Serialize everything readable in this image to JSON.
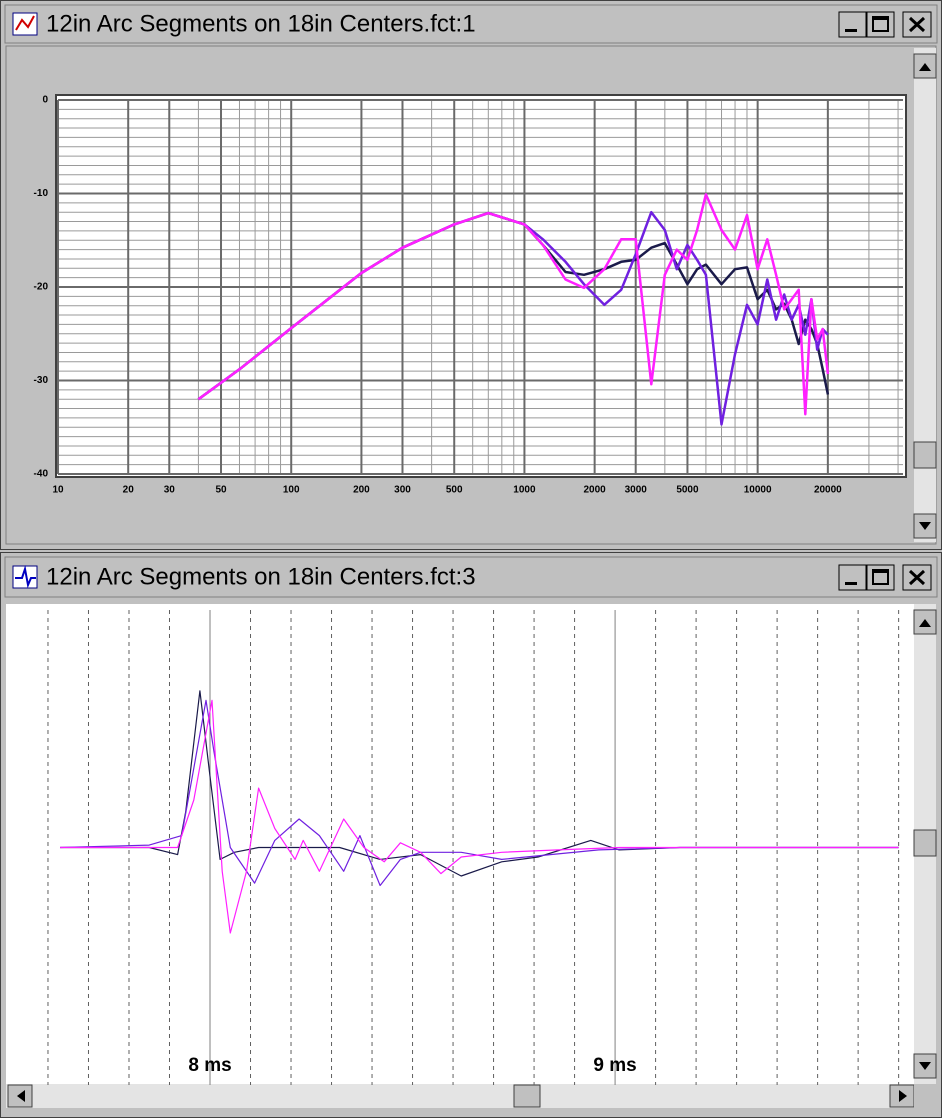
{
  "windows": [
    {
      "title": "12in Arc Segments on 18in Centers.fct:1"
    },
    {
      "title": "12in Arc Segments on 18in Centers.fct:3"
    }
  ],
  "chart_data": [
    {
      "type": "line",
      "x_scale": "log",
      "x": [
        40,
        60,
        100,
        200,
        300,
        500,
        700,
        1000,
        1200,
        1500,
        1800,
        2200,
        2600,
        3000,
        3500,
        4000,
        4500,
        5000,
        5500,
        6000,
        7000,
        8000,
        9000,
        10000,
        11000,
        12000,
        13000,
        14000,
        15000,
        16000,
        17000,
        18000,
        19000,
        20000
      ],
      "series": [
        {
          "color": "#1a1a4a",
          "values": [
            -32,
            -28.8,
            -24.4,
            -18.5,
            -15.8,
            -13.3,
            -12.1,
            -13.3,
            -15.5,
            -18.4,
            -18.7,
            -18.1,
            -17.3,
            -17.1,
            -15.8,
            -15.3,
            -17.6,
            -19.7,
            -18.1,
            -17.6,
            -19.7,
            -18.1,
            -17.9,
            -21.3,
            -20.3,
            -22.4,
            -21.8,
            -23.5,
            -26.1,
            -23.5,
            -24.5,
            -26.1,
            -28.8,
            -31.5
          ]
        },
        {
          "color": "#7020e0",
          "values": [
            -32,
            -28.8,
            -24.4,
            -18.5,
            -15.8,
            -13.3,
            -12.1,
            -13.3,
            -14.9,
            -17.3,
            -19.7,
            -21.9,
            -20.3,
            -16.5,
            -12.0,
            -13.9,
            -18.1,
            -15.5,
            -17.1,
            -18.7,
            -34.7,
            -27.2,
            -21.9,
            -24.0,
            -19.2,
            -23.5,
            -20.8,
            -23.5,
            -21.9,
            -25.1,
            -21.3,
            -26.7,
            -24.5,
            -25.1
          ]
        },
        {
          "color": "#ff20ff",
          "values": [
            -32,
            -28.8,
            -24.4,
            -18.5,
            -15.8,
            -13.3,
            -12.1,
            -13.3,
            -15.5,
            -19.2,
            -20.1,
            -18.1,
            -14.9,
            -14.9,
            -30.4,
            -18.7,
            -16.0,
            -17.1,
            -13.9,
            -10.1,
            -13.9,
            -16.0,
            -12.3,
            -18.1,
            -14.9,
            -18.7,
            -22.4,
            -21.3,
            -20.3,
            -33.6,
            -21.3,
            -25.6,
            -24.5,
            -29.3
          ]
        }
      ],
      "xlim": [
        10,
        42000
      ],
      "ylim": [
        -40,
        0
      ],
      "xticks": [
        10,
        20,
        30,
        50,
        100,
        200,
        300,
        500,
        1000,
        2000,
        3000,
        5000,
        10000,
        20000
      ],
      "yticks": [
        0,
        -10,
        -20,
        -30,
        -40
      ],
      "grid": true
    },
    {
      "type": "line",
      "series": [
        {
          "color": "#1a1a4a",
          "x": [
            7.63,
            7.85,
            7.92,
            7.94,
            7.975,
            8.0,
            8.025,
            8.06,
            8.12,
            8.22,
            8.32,
            8.42,
            8.52,
            8.62,
            8.72,
            8.81,
            8.94,
            9.01,
            9.16,
            9.7
          ],
          "values": [
            0,
            0,
            -0.03,
            0.15,
            0.66,
            0.3,
            -0.05,
            -0.02,
            0,
            0,
            0,
            -0.05,
            -0.03,
            -0.12,
            -0.06,
            -0.04,
            0.03,
            -0.01,
            0,
            0
          ]
        },
        {
          "color": "#7020e0",
          "x": [
            7.63,
            7.85,
            7.93,
            7.99,
            8.01,
            8.05,
            8.11,
            8.16,
            8.22,
            8.27,
            8.33,
            8.37,
            8.42,
            8.47,
            8.52,
            8.62,
            8.72,
            8.84,
            8.96,
            9.16,
            9.7
          ],
          "values": [
            0,
            0.01,
            0.05,
            0.62,
            0.4,
            0,
            -0.15,
            0.03,
            0.12,
            0.05,
            -0.1,
            0.05,
            -0.16,
            -0.05,
            -0.02,
            -0.02,
            -0.05,
            -0.03,
            -0.01,
            0,
            0
          ]
        },
        {
          "color": "#ff20ff",
          "x": [
            7.63,
            7.92,
            7.96,
            8.005,
            8.03,
            8.05,
            8.09,
            8.12,
            8.16,
            8.21,
            8.23,
            8.27,
            8.33,
            8.38,
            8.43,
            8.47,
            8.52,
            8.57,
            8.62,
            8.72,
            8.86,
            9.01,
            9.7
          ],
          "values": [
            0,
            0,
            0.2,
            0.62,
            -0.1,
            -0.36,
            -0.1,
            0.25,
            0.08,
            -0.05,
            0.03,
            -0.1,
            0.12,
            0,
            -0.06,
            0.02,
            -0.02,
            -0.11,
            -0.04,
            -0.02,
            -0.01,
            0,
            0
          ]
        }
      ],
      "xlim": [
        7.526,
        9.733
      ],
      "ylim": [
        -1,
        1
      ],
      "xticks": [
        {
          "value": 8,
          "label": "8 ms"
        },
        {
          "value": 9,
          "label": "9 ms"
        }
      ],
      "grid": true
    }
  ]
}
